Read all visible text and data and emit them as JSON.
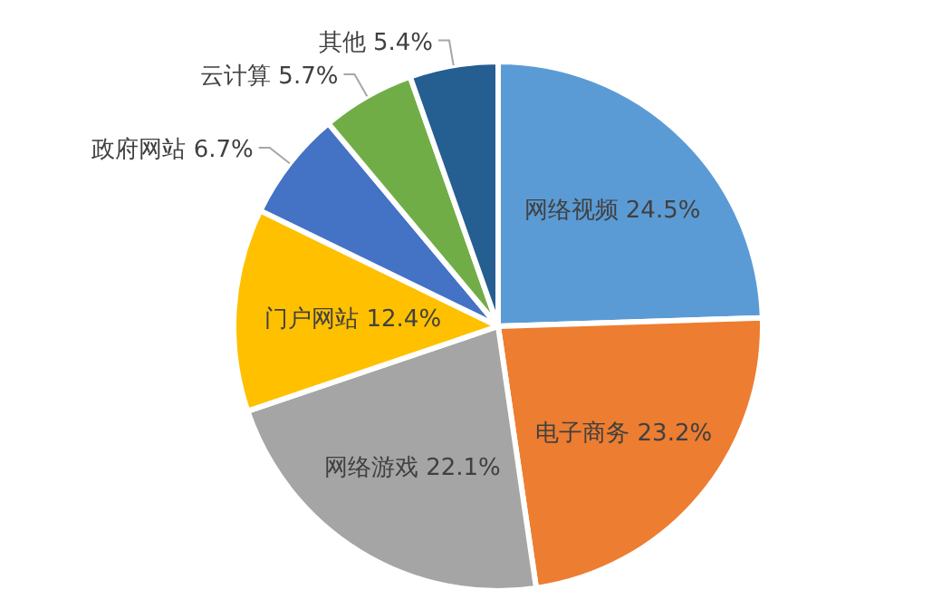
{
  "chart_data": {
    "type": "pie",
    "categories": [
      "网络视频",
      "电子商务",
      "网络游戏",
      "门户网站",
      "政府网站",
      "云计算",
      "其他"
    ],
    "values": [
      24.5,
      23.2,
      22.1,
      12.4,
      6.7,
      5.7,
      5.4
    ],
    "value_labels": [
      "24.5%",
      "23.2%",
      "22.1%",
      "12.4%",
      "6.7%",
      "5.7%",
      "5.4%"
    ],
    "colors": [
      "#5b9bd5",
      "#ed7d31",
      "#a5a5a5",
      "#ffc000",
      "#4472c4",
      "#70ad47",
      "#255e91"
    ]
  }
}
